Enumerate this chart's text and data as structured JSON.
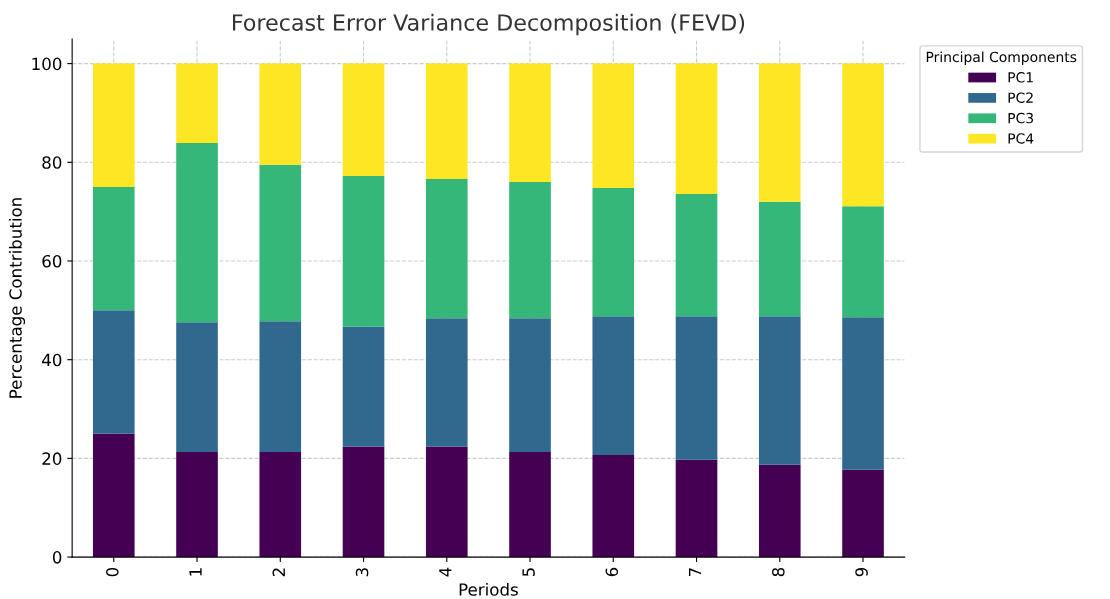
{
  "chart_data": {
    "type": "bar",
    "title": "Forecast Error Variance Decomposition (FEVD)",
    "xlabel": "Periods",
    "ylabel": "Percentage Contribution",
    "legend_title": "Principal Components",
    "categories": [
      "0",
      "1",
      "2",
      "3",
      "4",
      "5",
      "6",
      "7",
      "8",
      "9"
    ],
    "stacked": true,
    "series": [
      {
        "name": "PC1",
        "color": "#440154",
        "values": [
          25.0,
          21.3,
          21.3,
          22.4,
          22.4,
          21.3,
          20.7,
          19.7,
          18.7,
          17.7
        ]
      },
      {
        "name": "PC2",
        "color": "#31688e",
        "values": [
          25.0,
          26.3,
          26.5,
          24.3,
          26.0,
          27.1,
          28.1,
          29.1,
          30.1,
          30.9
        ]
      },
      {
        "name": "PC3",
        "color": "#35b779",
        "values": [
          25.0,
          36.3,
          31.7,
          30.5,
          28.2,
          27.6,
          26.0,
          24.8,
          23.2,
          22.5
        ]
      },
      {
        "name": "PC4",
        "color": "#fde725",
        "values": [
          25.0,
          16.1,
          20.5,
          22.8,
          23.4,
          24.0,
          25.2,
          26.4,
          28.0,
          28.9
        ]
      }
    ],
    "ylim": [
      0,
      105
    ],
    "yticks": [
      0,
      20,
      40,
      60,
      80,
      100
    ],
    "grid": true,
    "legend": "top right"
  }
}
